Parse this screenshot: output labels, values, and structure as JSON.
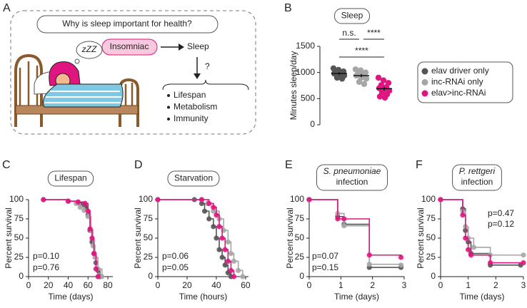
{
  "diagram": {
    "panel": "A",
    "question": "Why is sleep important for health?",
    "subject": "Insomniac",
    "outcome": "Sleep",
    "unknown": "?",
    "dream": "zZZ",
    "effects": [
      "Lifespan",
      "Metabolism",
      "Immunity"
    ]
  },
  "chart_data": [
    {
      "panel": "B",
      "type": "strip",
      "title": [
        "Sleep"
      ],
      "y_label": "Minutes sleep/day",
      "ylim": [
        0,
        1500
      ],
      "yticks": [
        0,
        500,
        1000,
        1500
      ],
      "significance": [
        "n.s.",
        "****",
        "****"
      ],
      "series": [
        {
          "name": "elav driver only",
          "color": "#555555",
          "values": [
            1080,
            1050,
            1020,
            1000,
            990,
            980,
            960,
            940,
            900,
            880,
            1010,
            970
          ],
          "mean": 980,
          "sem": 25
        },
        {
          "name": "inc-RNAi only",
          "color": "#a6a6a6",
          "values": [
            1060,
            1040,
            1000,
            980,
            960,
            940,
            900,
            880,
            820,
            780
          ],
          "mean": 940,
          "sem": 30
        },
        {
          "name": "elav>inc-RNAi",
          "color": "#e0157f",
          "values": [
            900,
            850,
            800,
            760,
            720,
            700,
            680,
            650,
            620,
            580,
            540,
            520
          ],
          "mean": 690,
          "sem": 35
        }
      ]
    },
    {
      "panel": "C",
      "type": "survival",
      "title": [
        "Lifespan"
      ],
      "x_label": "Time (days)",
      "y_label": "Percent survival",
      "xlim": [
        0,
        85
      ],
      "xticks": [
        0,
        20,
        40,
        60,
        80
      ],
      "ylim": [
        0,
        100
      ],
      "yticks": [
        0,
        25,
        50,
        75,
        100
      ],
      "annotations": [
        "p=0.10",
        "p=0.76"
      ],
      "series": [
        {
          "color": "#555555",
          "x": [
            15,
            40,
            50,
            55,
            58,
            60,
            62,
            64,
            66,
            68,
            70,
            72
          ],
          "values": [
            100,
            98,
            96,
            94,
            90,
            80,
            60,
            45,
            30,
            18,
            8,
            0
          ]
        },
        {
          "color": "#a6a6a6",
          "x": [
            15,
            40,
            48,
            52,
            56,
            60,
            63,
            65,
            67,
            70,
            74
          ],
          "values": [
            100,
            98,
            95,
            90,
            86,
            78,
            60,
            40,
            25,
            10,
            0
          ]
        },
        {
          "color": "#e0157f",
          "x": [
            15,
            40,
            50,
            57,
            60,
            62,
            64,
            66,
            68,
            70
          ],
          "values": [
            100,
            98,
            97,
            95,
            85,
            62,
            50,
            30,
            10,
            0
          ]
        }
      ]
    },
    {
      "panel": "D",
      "type": "survival",
      "title": [
        "Starvation"
      ],
      "x_label": "Time (hours)",
      "y_label": "Percent survival",
      "xlim": [
        0,
        62
      ],
      "xticks": [
        0,
        20,
        40,
        60
      ],
      "ylim": [
        0,
        100
      ],
      "yticks": [
        0,
        25,
        50,
        75,
        100
      ],
      "annotations": [
        "p=0.06",
        "p=0.05"
      ],
      "series": [
        {
          "color": "#555555",
          "x": [
            0,
            25,
            30,
            32,
            35,
            38,
            40,
            42,
            44,
            46,
            48,
            50
          ],
          "values": [
            100,
            100,
            95,
            85,
            75,
            65,
            50,
            35,
            25,
            15,
            5,
            0
          ]
        },
        {
          "color": "#a6a6a6",
          "x": [
            0,
            30,
            34,
            38,
            42,
            45,
            48,
            50,
            52,
            55,
            58
          ],
          "values": [
            100,
            100,
            95,
            85,
            75,
            60,
            45,
            30,
            20,
            8,
            0
          ]
        },
        {
          "color": "#e0157f",
          "x": [
            0,
            30,
            35,
            38,
            40,
            42,
            44,
            46,
            48,
            50,
            52
          ],
          "values": [
            100,
            100,
            95,
            90,
            80,
            65,
            50,
            35,
            20,
            8,
            0
          ]
        }
      ]
    },
    {
      "panel": "E",
      "type": "survival",
      "title": [
        "S. pneumoniae",
        "infection"
      ],
      "x_label": "Time (days)",
      "y_label": "Percent survival",
      "xlim": [
        0,
        3
      ],
      "xticks": [
        0,
        1,
        2,
        3
      ],
      "ylim": [
        0,
        100
      ],
      "yticks": [
        0,
        25,
        50,
        75,
        100
      ],
      "annotations": [
        "p=0.07",
        "p=0.15"
      ],
      "series": [
        {
          "color": "#555555",
          "x": [
            0,
            0.9,
            1.1,
            1.9,
            2.9
          ],
          "values": [
            100,
            78,
            68,
            12,
            12
          ]
        },
        {
          "color": "#a6a6a6",
          "x": [
            0,
            0.9,
            1.1,
            1.9,
            2.9
          ],
          "values": [
            100,
            82,
            66,
            16,
            15
          ]
        },
        {
          "color": "#e0157f",
          "x": [
            0,
            0.9,
            1.1,
            1.9,
            2.9
          ],
          "values": [
            100,
            75,
            75,
            28,
            25
          ]
        }
      ]
    },
    {
      "panel": "F",
      "type": "survival",
      "title": [
        "P. rettgeri",
        "infection"
      ],
      "x_label": "Time (days)",
      "y_label": "Percent survival",
      "xlim": [
        0,
        3
      ],
      "xticks": [
        0,
        1,
        2,
        3
      ],
      "ylim": [
        0,
        100
      ],
      "yticks": [
        0,
        25,
        50,
        75,
        100
      ],
      "annotations": [
        "p=0.47",
        "p=0.12"
      ],
      "series": [
        {
          "color": "#555555",
          "x": [
            0,
            0.8,
            0.9,
            1.0,
            1.1,
            1.8,
            2.9
          ],
          "values": [
            100,
            88,
            60,
            45,
            30,
            15,
            15
          ]
        },
        {
          "color": "#a6a6a6",
          "x": [
            0,
            0.8,
            0.9,
            1.0,
            1.2,
            1.8,
            3.0
          ],
          "values": [
            100,
            85,
            65,
            50,
            38,
            28,
            28
          ]
        },
        {
          "color": "#e0157f",
          "x": [
            0,
            0.8,
            0.9,
            1.0,
            1.1,
            1.8,
            3.0
          ],
          "values": [
            100,
            80,
            50,
            35,
            28,
            18,
            18
          ]
        }
      ]
    }
  ]
}
